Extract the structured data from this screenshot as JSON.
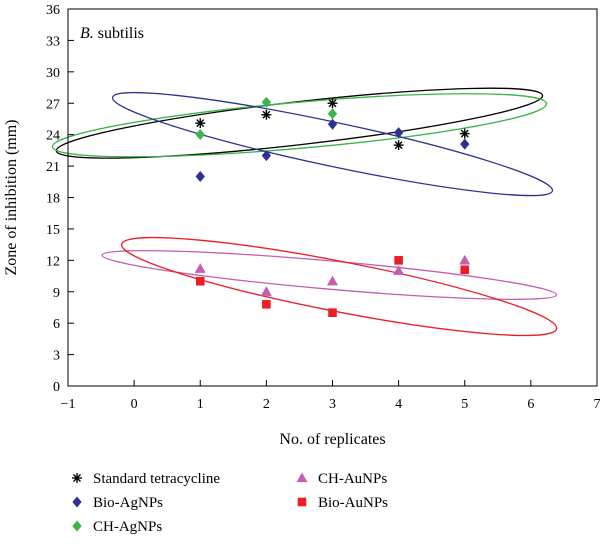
{
  "chart_data": {
    "type": "scatter",
    "title": "B. subtilis",
    "xlabel": "No. of replicates",
    "ylabel": "Zone of inhibition (mm)",
    "xlim": [
      -1,
      7
    ],
    "ylim": [
      0,
      36
    ],
    "xticks": [
      -1,
      0,
      1,
      2,
      3,
      4,
      5,
      6,
      7
    ],
    "yticks": [
      0,
      3,
      6,
      9,
      12,
      15,
      18,
      21,
      24,
      27,
      30,
      33,
      36
    ],
    "grid": false,
    "legend_position": "bottom",
    "series": [
      {
        "name": "Standard tetracycline",
        "marker": "asterisk",
        "color": "#000000",
        "x": [
          1,
          2,
          3,
          4,
          5
        ],
        "y": [
          25.1,
          25.9,
          27.0,
          23.0,
          24.1
        ]
      },
      {
        "name": "Bio-AgNPs",
        "marker": "diamond",
        "color": "#2e3192",
        "x": [
          1,
          2,
          3,
          4,
          5
        ],
        "y": [
          20.0,
          22.0,
          25.0,
          24.2,
          23.1
        ]
      },
      {
        "name": "CH-AgNPs",
        "marker": "diamond",
        "color": "#39b54a",
        "x": [
          1,
          2,
          3
        ],
        "y": [
          24.0,
          27.1,
          26.0
        ]
      },
      {
        "name": "CH-AuNPs",
        "marker": "triangle",
        "color": "#c45cb0",
        "x": [
          1,
          2,
          3,
          4,
          5
        ],
        "y": [
          11.2,
          9.0,
          10.0,
          11.0,
          12.0
        ]
      },
      {
        "name": "Bio-AuNPs",
        "marker": "square",
        "color": "#ed1c24",
        "x": [
          1,
          2,
          3,
          4,
          5
        ],
        "y": [
          10.0,
          7.8,
          7.0,
          12.0,
          11.1
        ]
      }
    ],
    "ellipses": [
      {
        "color": "#000000",
        "center": [
          2.5,
          25.1
        ],
        "radius_x": 3.7,
        "radius_y": 2.05,
        "rotation_deg": -6.5
      },
      {
        "color": "#39b54a",
        "center": [
          2.5,
          24.9
        ],
        "radius_x": 3.75,
        "radius_y": 2.2,
        "rotation_deg": -5.0
      },
      {
        "color": "#2e3192",
        "center": [
          3.0,
          23.1
        ],
        "radius_x": 3.4,
        "radius_y": 2.1,
        "rotation_deg": 12.0
      },
      {
        "color": "#c45cb0",
        "center": [
          2.95,
          10.6
        ],
        "radius_x": 3.45,
        "radius_y": 1.35,
        "rotation_deg": 5.0
      },
      {
        "color": "#ed1c24",
        "center": [
          3.1,
          9.5
        ],
        "radius_x": 3.35,
        "radius_y": 2.4,
        "rotation_deg": 11.0
      }
    ]
  },
  "legend": {
    "left": [
      "Standard tetracycline",
      "Bio-AgNPs",
      "CH-AgNPs"
    ],
    "right": [
      "CH-AuNPs",
      "Bio-AuNPs"
    ]
  }
}
